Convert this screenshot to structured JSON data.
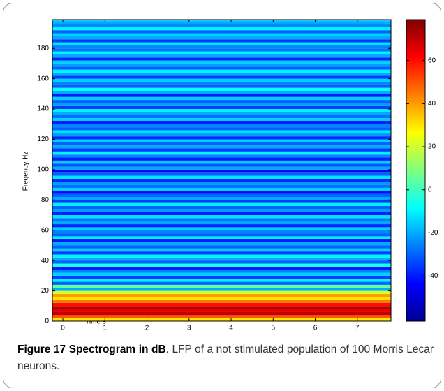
{
  "chart_data": {
    "type": "heatmap",
    "xlabel": "Time s",
    "ylabel": "Freqency Hz",
    "xlim": [
      -0.25,
      7.8
    ],
    "xticks": [
      0,
      1,
      2,
      3,
      4,
      5,
      6,
      7
    ],
    "ylim": [
      0,
      199
    ],
    "yticks": [
      0,
      20,
      40,
      60,
      80,
      100,
      120,
      140,
      160,
      180
    ],
    "clim": [
      -61,
      79
    ],
    "cticks": [
      -40,
      -20,
      0,
      20,
      40,
      60
    ],
    "colormap": "jet",
    "y": [
      1,
      3,
      5,
      7,
      9,
      11,
      13,
      15,
      17,
      19,
      21,
      23,
      25,
      27,
      29,
      31,
      33,
      35,
      37,
      39,
      41,
      43,
      45,
      47,
      49,
      51,
      53,
      55,
      57,
      59,
      61,
      63,
      65,
      67,
      69,
      71,
      73,
      75,
      77,
      79,
      81,
      83,
      85,
      87,
      89,
      91,
      93,
      95,
      97,
      99,
      101,
      103,
      105,
      107,
      109,
      111,
      113,
      115,
      117,
      119,
      121,
      123,
      125,
      127,
      129,
      131,
      133,
      135,
      137,
      139,
      141,
      143,
      145,
      147,
      149,
      151,
      153,
      155,
      157,
      159,
      161,
      163,
      165,
      167,
      169,
      171,
      173,
      175,
      177,
      179,
      181,
      183,
      185,
      187,
      189,
      191,
      193,
      195,
      197,
      199
    ],
    "values": [
      30,
      50,
      70,
      65,
      72,
      60,
      45,
      30,
      40,
      20,
      -20,
      5,
      -30,
      -10,
      -35,
      -15,
      -25,
      -40,
      -5,
      -30,
      -20,
      -10,
      -35,
      -15,
      -30,
      -20,
      -40,
      -10,
      -30,
      -25,
      -15,
      -38,
      -20,
      -28,
      -12,
      -40,
      -22,
      -30,
      -10,
      -35,
      -20,
      -30,
      -42,
      -15,
      -28,
      -22,
      -38,
      -12,
      -30,
      -45,
      -20,
      -32,
      -15,
      -40,
      -25,
      -10,
      -35,
      -20,
      -30,
      -15,
      -38,
      -22,
      -12,
      -30,
      -25,
      -40,
      -15,
      -28,
      -20,
      -10,
      -35,
      -22,
      -30,
      -15,
      -40,
      -20,
      -8,
      -30,
      -25,
      -15,
      -35,
      -20,
      -10,
      -30,
      -22,
      -15,
      -38,
      -20,
      -10,
      -28,
      -25,
      -12,
      -35,
      -20,
      -15,
      -30,
      -10,
      -25,
      -20,
      -15
    ],
    "caption_title": "Figure 17 Spectrogram in dB",
    "caption_text": ". LFP of a not stimulated population of 100 Morris Lecar neurons."
  }
}
